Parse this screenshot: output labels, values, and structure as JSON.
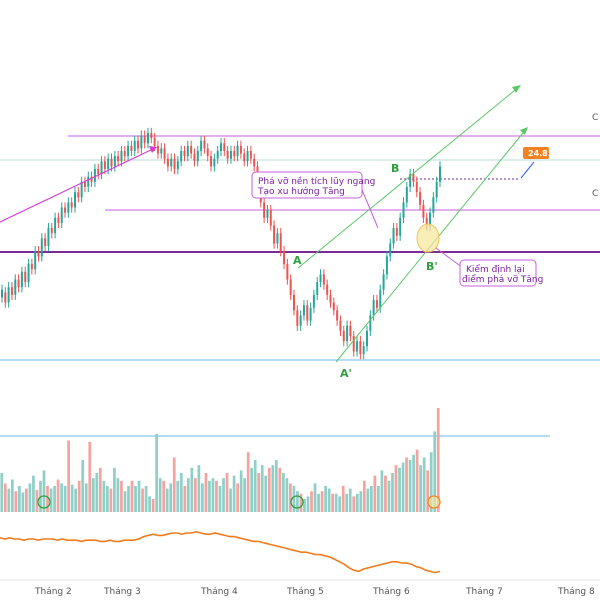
{
  "chart_data": {
    "type": "candlestick",
    "x_ticks": [
      "Tháng 2",
      "Tháng 3",
      "Tháng 4",
      "Tháng 5",
      "Tháng 6",
      "Tháng 7",
      "Tháng 8"
    ],
    "price_label": "24.81",
    "annotations": [
      {
        "id": "breakout",
        "lines": [
          "Phá vỡ nền tích lũy ngang",
          "Tạo xu hướng Tăng"
        ]
      },
      {
        "id": "retest",
        "lines": [
          "Kiểm định lại",
          "điểm phá vỡ Tăng"
        ]
      }
    ],
    "points": {
      "A": "A",
      "A_prime": "A'",
      "B": "B",
      "B_prime": "B'"
    },
    "edge_labels": [
      "C",
      "C"
    ],
    "price_series": [
      [
        0.29,
        0.32
      ],
      [
        0.31,
        0.27
      ],
      [
        0.27,
        0.33
      ],
      [
        0.33,
        0.3
      ],
      [
        0.3,
        0.36
      ],
      [
        0.36,
        0.33
      ],
      [
        0.33,
        0.39
      ],
      [
        0.39,
        0.35
      ],
      [
        0.35,
        0.42
      ],
      [
        0.42,
        0.4
      ],
      [
        0.4,
        0.47
      ],
      [
        0.47,
        0.45
      ],
      [
        0.45,
        0.52
      ],
      [
        0.52,
        0.49
      ],
      [
        0.49,
        0.56
      ],
      [
        0.56,
        0.54
      ],
      [
        0.54,
        0.6
      ],
      [
        0.6,
        0.58
      ],
      [
        0.58,
        0.64
      ],
      [
        0.64,
        0.62
      ],
      [
        0.62,
        0.66
      ],
      [
        0.66,
        0.64
      ],
      [
        0.64,
        0.7
      ],
      [
        0.7,
        0.68
      ],
      [
        0.68,
        0.74
      ],
      [
        0.74,
        0.72
      ],
      [
        0.72,
        0.76
      ],
      [
        0.76,
        0.74
      ],
      [
        0.74,
        0.79
      ],
      [
        0.79,
        0.77
      ],
      [
        0.77,
        0.82
      ],
      [
        0.82,
        0.79
      ],
      [
        0.79,
        0.83
      ],
      [
        0.83,
        0.8
      ],
      [
        0.8,
        0.84
      ],
      [
        0.84,
        0.82
      ],
      [
        0.82,
        0.86
      ],
      [
        0.86,
        0.84
      ],
      [
        0.84,
        0.88
      ],
      [
        0.88,
        0.86
      ],
      [
        0.86,
        0.9
      ],
      [
        0.9,
        0.87
      ],
      [
        0.87,
        0.92
      ],
      [
        0.92,
        0.89
      ],
      [
        0.89,
        0.93
      ],
      [
        0.93,
        0.91
      ],
      [
        0.91,
        0.88
      ],
      [
        0.88,
        0.85
      ],
      [
        0.85,
        0.87
      ],
      [
        0.87,
        0.83
      ],
      [
        0.83,
        0.8
      ],
      [
        0.8,
        0.83
      ],
      [
        0.83,
        0.79
      ],
      [
        0.79,
        0.82
      ],
      [
        0.82,
        0.86
      ],
      [
        0.86,
        0.84
      ],
      [
        0.84,
        0.88
      ],
      [
        0.88,
        0.85
      ],
      [
        0.85,
        0.82
      ],
      [
        0.82,
        0.86
      ],
      [
        0.86,
        0.9
      ],
      [
        0.9,
        0.87
      ],
      [
        0.87,
        0.84
      ],
      [
        0.84,
        0.8
      ],
      [
        0.8,
        0.83
      ],
      [
        0.83,
        0.86
      ],
      [
        0.86,
        0.89
      ],
      [
        0.89,
        0.86
      ],
      [
        0.86,
        0.83
      ],
      [
        0.83,
        0.86
      ],
      [
        0.86,
        0.84
      ],
      [
        0.84,
        0.88
      ],
      [
        0.88,
        0.85
      ],
      [
        0.85,
        0.82
      ],
      [
        0.82,
        0.86
      ],
      [
        0.86,
        0.83
      ],
      [
        0.83,
        0.8
      ],
      [
        0.8,
        0.73
      ],
      [
        0.73,
        0.66
      ],
      [
        0.66,
        0.6
      ],
      [
        0.6,
        0.63
      ],
      [
        0.63,
        0.57
      ],
      [
        0.57,
        0.5
      ],
      [
        0.5,
        0.54
      ],
      [
        0.54,
        0.47
      ],
      [
        0.47,
        0.42
      ],
      [
        0.42,
        0.36
      ],
      [
        0.36,
        0.3
      ],
      [
        0.3,
        0.24
      ],
      [
        0.24,
        0.18
      ],
      [
        0.18,
        0.22
      ],
      [
        0.22,
        0.26
      ],
      [
        0.26,
        0.2
      ],
      [
        0.2,
        0.25
      ],
      [
        0.25,
        0.3
      ],
      [
        0.3,
        0.35
      ],
      [
        0.35,
        0.38
      ],
      [
        0.38,
        0.34
      ],
      [
        0.34,
        0.3
      ],
      [
        0.3,
        0.27
      ],
      [
        0.27,
        0.24
      ],
      [
        0.24,
        0.2
      ],
      [
        0.2,
        0.16
      ],
      [
        0.16,
        0.12
      ],
      [
        0.12,
        0.18
      ],
      [
        0.18,
        0.14
      ],
      [
        0.14,
        0.08
      ],
      [
        0.08,
        0.12
      ],
      [
        0.12,
        0.07
      ],
      [
        0.07,
        0.1
      ],
      [
        0.1,
        0.16
      ],
      [
        0.16,
        0.22
      ],
      [
        0.22,
        0.28
      ],
      [
        0.28,
        0.25
      ],
      [
        0.25,
        0.32
      ],
      [
        0.32,
        0.38
      ],
      [
        0.38,
        0.45
      ],
      [
        0.45,
        0.5
      ],
      [
        0.5,
        0.56
      ],
      [
        0.56,
        0.53
      ],
      [
        0.53,
        0.6
      ],
      [
        0.6,
        0.66
      ],
      [
        0.66,
        0.72
      ],
      [
        0.72,
        0.77
      ],
      [
        0.77,
        0.74
      ],
      [
        0.74,
        0.7
      ],
      [
        0.7,
        0.65
      ],
      [
        0.65,
        0.6
      ],
      [
        0.6,
        0.57
      ],
      [
        0.57,
        0.62
      ],
      [
        0.62,
        0.68
      ],
      [
        0.68,
        0.74
      ],
      [
        0.74,
        0.8
      ]
    ],
    "volume": [
      0.3,
      0.22,
      0.18,
      0.25,
      0.16,
      0.2,
      0.15,
      0.18,
      0.22,
      0.28,
      0.17,
      0.24,
      0.32,
      0.2,
      0.18,
      0.2,
      0.25,
      0.22,
      0.2,
      0.55,
      0.21,
      0.18,
      0.24,
      0.4,
      0.22,
      0.54,
      0.26,
      0.3,
      0.34,
      0.24,
      0.2,
      0.18,
      0.34,
      0.26,
      0.24,
      0.16,
      0.2,
      0.24,
      0.2,
      0.24,
      0.18,
      0.2,
      0.12,
      0.1,
      0.6,
      0.26,
      0.24,
      0.18,
      0.22,
      0.42,
      0.24,
      0.3,
      0.2,
      0.26,
      0.34,
      0.26,
      0.36,
      0.22,
      0.3,
      0.24,
      0.26,
      0.24,
      0.2,
      0.26,
      0.3,
      0.18,
      0.28,
      0.22,
      0.32,
      0.26,
      0.46,
      0.34,
      0.4,
      0.3,
      0.36,
      0.28,
      0.34,
      0.36,
      0.4,
      0.34,
      0.3,
      0.26,
      0.22,
      0.2,
      0.16,
      0.14,
      0.1,
      0.12,
      0.16,
      0.22,
      0.14,
      0.16,
      0.2,
      0.18,
      0.14,
      0.14,
      0.12,
      0.2,
      0.14,
      0.18,
      0.12,
      0.14,
      0.16,
      0.24,
      0.18,
      0.2,
      0.28,
      0.2,
      0.32,
      0.28,
      0.24,
      0.3,
      0.36,
      0.34,
      0.38,
      0.42,
      0.4,
      0.44,
      0.48,
      0.36,
      0.42,
      0.32,
      0.46,
      0.62,
      0.8
    ],
    "indicator": [
      0.62,
      0.6,
      0.62,
      0.6,
      0.6,
      0.58,
      0.6,
      0.6,
      0.58,
      0.6,
      0.6,
      0.6,
      0.58,
      0.6,
      0.58,
      0.58,
      0.58,
      0.56,
      0.58,
      0.58,
      0.58,
      0.56,
      0.56,
      0.58,
      0.56,
      0.56,
      0.58,
      0.58,
      0.58,
      0.6,
      0.64,
      0.66,
      0.68,
      0.66,
      0.66,
      0.68,
      0.7,
      0.7,
      0.68,
      0.7,
      0.7,
      0.72,
      0.7,
      0.68,
      0.68,
      0.7,
      0.68,
      0.66,
      0.64,
      0.64,
      0.62,
      0.6,
      0.58,
      0.56,
      0.56,
      0.54,
      0.52,
      0.5,
      0.48,
      0.46,
      0.44,
      0.42,
      0.4,
      0.38,
      0.38,
      0.36,
      0.34,
      0.34,
      0.32,
      0.3,
      0.26,
      0.22,
      0.18,
      0.12,
      0.08,
      0.06,
      0.1,
      0.12,
      0.14,
      0.16,
      0.18,
      0.2,
      0.22,
      0.22,
      0.2,
      0.2,
      0.18,
      0.14,
      0.12,
      0.08,
      0.06,
      0.04,
      0.06
    ]
  }
}
